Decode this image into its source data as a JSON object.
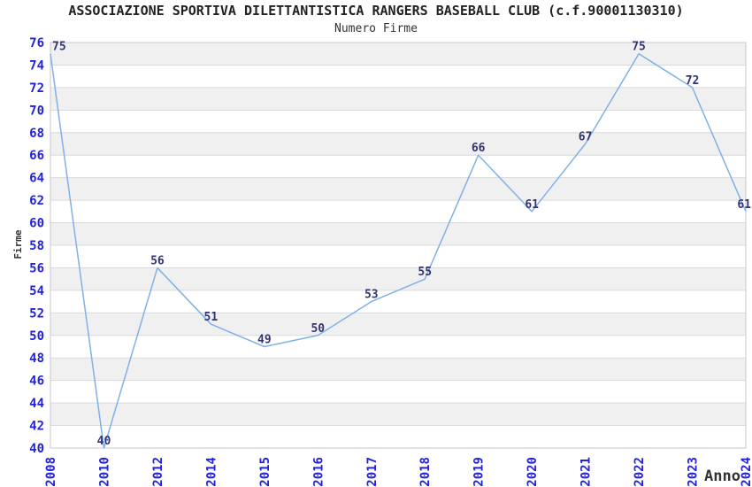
{
  "chart_data": {
    "type": "line",
    "title": "ASSOCIAZIONE SPORTIVA DILETTANTISTICA RANGERS BASEBALL CLUB (c.f.90001130310)",
    "subtitle": "Numero Firme",
    "xlabel": "Anno",
    "ylabel": "Firme",
    "categories": [
      "2008",
      "2010",
      "2012",
      "2014",
      "2015",
      "2016",
      "2017",
      "2018",
      "2019",
      "2020",
      "2021",
      "2022",
      "2023",
      "2024"
    ],
    "values": [
      75,
      40,
      56,
      51,
      49,
      50,
      53,
      55,
      66,
      61,
      67,
      75,
      72,
      61
    ],
    "ylim": [
      40,
      76
    ],
    "ytick_step": 2,
    "grid": "horizontal-stripes-every-2-units",
    "legend": false,
    "data_labels_shown": true,
    "colors": {
      "line": "#7fb1e6",
      "tick_label": "#2222dd",
      "data_label": "#333377",
      "stripe": "#f0f0f0",
      "gridline": "#dadada",
      "border": "#c8c8c8",
      "text": "#333333",
      "background": "#ffffff"
    }
  }
}
